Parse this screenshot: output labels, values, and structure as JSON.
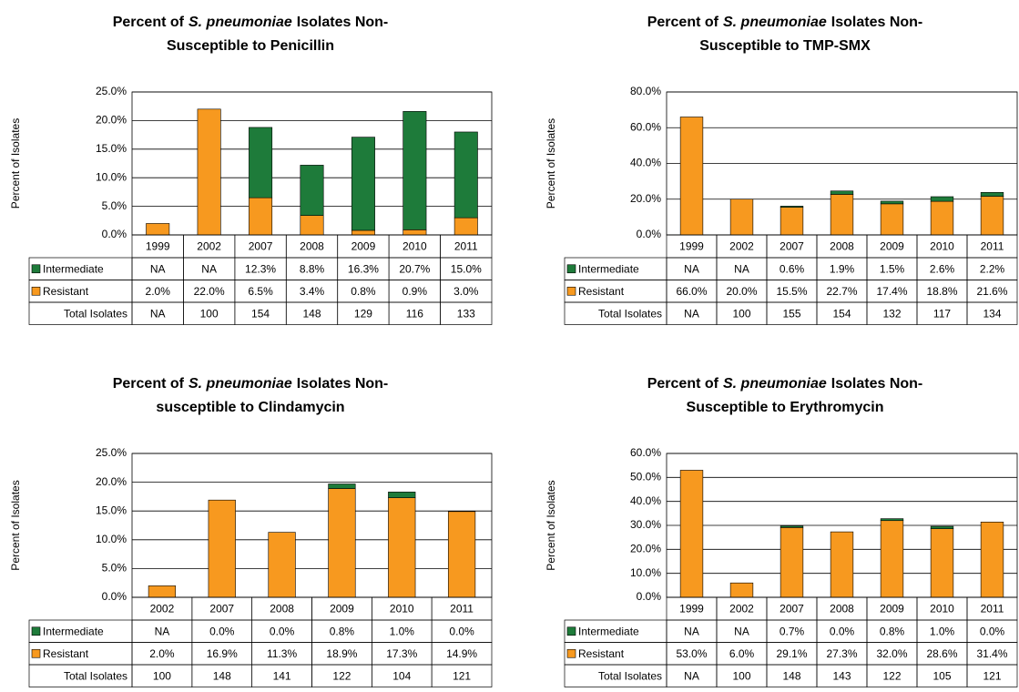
{
  "chart_data": [
    {
      "type": "bar",
      "stacked": true,
      "title": [
        "Percent of",
        "S. pneumoniae",
        "Isolates Non-",
        "Susceptible to Penicillin"
      ],
      "ylabel": "Percent of Isolates",
      "categories": [
        "1999",
        "2002",
        "2007",
        "2008",
        "2009",
        "2010",
        "2011"
      ],
      "series": [
        {
          "name": "Intermediate",
          "color": "#1e7b3a",
          "values": [
            null,
            null,
            12.3,
            8.8,
            16.3,
            20.7,
            15.0
          ],
          "value_labels": [
            "NA",
            "NA",
            "12.3%",
            "8.8%",
            "16.3%",
            "20.7%",
            "15.0%"
          ]
        },
        {
          "name": "Resistant",
          "color": "#f7991f",
          "values": [
            2.0,
            22.0,
            6.5,
            3.4,
            0.8,
            0.9,
            3.0
          ],
          "value_labels": [
            "2.0%",
            "22.0%",
            "6.5%",
            "3.4%",
            "0.8%",
            "0.9%",
            "3.0%"
          ]
        }
      ],
      "totals": {
        "name": "Total Isolates",
        "values": [
          "NA",
          100,
          154,
          148,
          129,
          116,
          133
        ]
      },
      "ylim": [
        0,
        25
      ],
      "yticks": [
        {
          "value": 0,
          "label": "0.0%"
        },
        {
          "value": 5,
          "label": "5.0%"
        },
        {
          "value": 10,
          "label": "10.0%"
        },
        {
          "value": 15,
          "label": "15.0%"
        },
        {
          "value": 20,
          "label": "20.0%"
        },
        {
          "value": 25,
          "label": "25.0%"
        }
      ],
      "grid": true
    },
    {
      "type": "bar",
      "stacked": true,
      "title": [
        "Percent of",
        "S. pneumoniae",
        "Isolates Non-",
        "Susceptible to TMP-SMX"
      ],
      "ylabel": "Percent of Isolates",
      "categories": [
        "1999",
        "2002",
        "2007",
        "2008",
        "2009",
        "2010",
        "2011"
      ],
      "series": [
        {
          "name": "Intermediate",
          "color": "#1e7b3a",
          "values": [
            null,
            null,
            0.6,
            1.9,
            1.5,
            2.6,
            2.2
          ],
          "value_labels": [
            "NA",
            "NA",
            "0.6%",
            "1.9%",
            "1.5%",
            "2.6%",
            "2.2%"
          ]
        },
        {
          "name": "Resistant",
          "color": "#f7991f",
          "values": [
            66.0,
            20.0,
            15.5,
            22.7,
            17.4,
            18.8,
            21.6
          ],
          "value_labels": [
            "66.0%",
            "20.0%",
            "15.5%",
            "22.7%",
            "17.4%",
            "18.8%",
            "21.6%"
          ]
        }
      ],
      "totals": {
        "name": "Total Isolates",
        "values": [
          "NA",
          100,
          155,
          154,
          132,
          117,
          134
        ]
      },
      "ylim": [
        0,
        80
      ],
      "yticks": [
        {
          "value": 0,
          "label": "0.0%"
        },
        {
          "value": 20,
          "label": "20.0%"
        },
        {
          "value": 40,
          "label": "40.0%"
        },
        {
          "value": 60,
          "label": "60.0%"
        },
        {
          "value": 80,
          "label": "80.0%"
        }
      ],
      "grid": true
    },
    {
      "type": "bar",
      "stacked": true,
      "title": [
        "Percent of",
        "S. pneumoniae",
        "Isolates Non-",
        "susceptible to Clindamycin"
      ],
      "ylabel": "Percent of Isolates",
      "categories": [
        "2002",
        "2007",
        "2008",
        "2009",
        "2010",
        "2011"
      ],
      "series": [
        {
          "name": "Intermediate",
          "color": "#1e7b3a",
          "values": [
            null,
            0.0,
            0.0,
            0.8,
            1.0,
            0.0
          ],
          "value_labels": [
            "NA",
            "0.0%",
            "0.0%",
            "0.8%",
            "1.0%",
            "0.0%"
          ]
        },
        {
          "name": "Resistant",
          "color": "#f7991f",
          "values": [
            2.0,
            16.9,
            11.3,
            18.9,
            17.3,
            14.9
          ],
          "value_labels": [
            "2.0%",
            "16.9%",
            "11.3%",
            "18.9%",
            "17.3%",
            "14.9%"
          ]
        }
      ],
      "totals": {
        "name": "Total Isolates",
        "values": [
          100,
          148,
          141,
          122,
          104,
          121
        ]
      },
      "ylim": [
        0,
        25
      ],
      "yticks": [
        {
          "value": 0,
          "label": "0.0%"
        },
        {
          "value": 5,
          "label": "5.0%"
        },
        {
          "value": 10,
          "label": "10.0%"
        },
        {
          "value": 15,
          "label": "15.0%"
        },
        {
          "value": 20,
          "label": "20.0%"
        },
        {
          "value": 25,
          "label": "25.0%"
        }
      ],
      "grid": true
    },
    {
      "type": "bar",
      "stacked": true,
      "title": [
        "Percent of",
        "S. pneumoniae",
        "Isolates Non-",
        "Susceptible to Erythromycin"
      ],
      "ylabel": "Percent of Isolates",
      "categories": [
        "1999",
        "2002",
        "2007",
        "2008",
        "2009",
        "2010",
        "2011"
      ],
      "series": [
        {
          "name": "Intermediate",
          "color": "#1e7b3a",
          "values": [
            null,
            null,
            0.7,
            0.0,
            0.8,
            1.0,
            0.0
          ],
          "value_labels": [
            "NA",
            "NA",
            "0.7%",
            "0.0%",
            "0.8%",
            "1.0%",
            "0.0%"
          ]
        },
        {
          "name": "Resistant",
          "color": "#f7991f",
          "values": [
            53.0,
            6.0,
            29.1,
            27.3,
            32.0,
            28.6,
            31.4
          ],
          "value_labels": [
            "53.0%",
            "6.0%",
            "29.1%",
            "27.3%",
            "32.0%",
            "28.6%",
            "31.4%"
          ]
        }
      ],
      "totals": {
        "name": "Total Isolates",
        "values": [
          "NA",
          100,
          148,
          143,
          122,
          105,
          121
        ]
      },
      "ylim": [
        0,
        60
      ],
      "yticks": [
        {
          "value": 0,
          "label": "0.0%"
        },
        {
          "value": 10,
          "label": "10.0%"
        },
        {
          "value": 20,
          "label": "20.0%"
        },
        {
          "value": 30,
          "label": "30.0%"
        },
        {
          "value": 40,
          "label": "40.0%"
        },
        {
          "value": 50,
          "label": "50.0%"
        },
        {
          "value": 60,
          "label": "60.0%"
        }
      ],
      "grid": true
    }
  ]
}
